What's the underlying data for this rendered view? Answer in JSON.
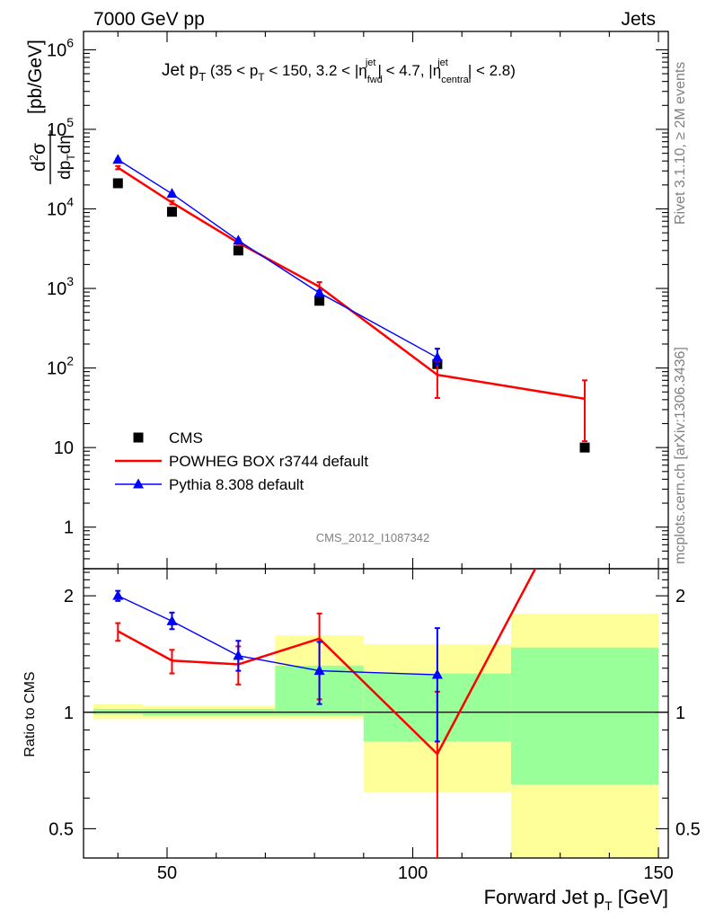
{
  "header": {
    "left": "7000 GeV pp",
    "right": "Jets"
  },
  "side_labels": {
    "rivet": "Rivet 3.1.10, ≥ 2M events",
    "mcplots": "mcplots.cern.ch [arXiv:1306.3436]"
  },
  "analysis_id": "CMS_2012_I1087342",
  "chart_data": [
    {
      "type": "line",
      "title": "Jet p_T (35 < p_T < 150, 3.2 < |η_fwd^jet| < 4.7, |η_central^jet| < 2.8)",
      "xlabel": "Forward Jet p_T [GeV]",
      "ylabel": "d²σ/dp_T dη [pb/GeV]",
      "yscale": "log",
      "xlim": [
        33,
        152
      ],
      "ylim": [
        0.3,
        1700000
      ],
      "ytick_labels": [
        "1",
        "10",
        "10^2",
        "10^3",
        "10^4",
        "10^5",
        "10^6"
      ],
      "legend_position": "bottom-left",
      "series": [
        {
          "name": "CMS",
          "color": "#000000",
          "marker": "square",
          "x": [
            40,
            51,
            64.5,
            81,
            105,
            135
          ],
          "y": [
            21000,
            9200,
            3000,
            700,
            112,
            10
          ]
        },
        {
          "name": "POWHEG BOX r3744 default",
          "color": "#ff0000",
          "marker": "line",
          "x": [
            40,
            51,
            64.5,
            81,
            105,
            135
          ],
          "y": [
            33000,
            12000,
            3750,
            1050,
            82,
            41
          ],
          "yerr_low": [
            31500,
            11400,
            3600,
            930,
            42,
            12
          ],
          "yerr_high": [
            34500,
            12600,
            3900,
            1200,
            120,
            70
          ]
        },
        {
          "name": "Pythia 8.308 default",
          "color": "#0000ff",
          "marker": "triangle",
          "x": [
            40,
            51,
            64.5,
            81,
            105
          ],
          "y": [
            41500,
            15500,
            4000,
            880,
            135
          ],
          "yerr_low": [
            40500,
            15100,
            3850,
            820,
            110
          ],
          "yerr_high": [
            42500,
            15900,
            4150,
            940,
            175
          ]
        }
      ]
    },
    {
      "type": "line",
      "ylabel": "Ratio to CMS",
      "xlabel": "Forward Jet p_T [GeV]",
      "yscale": "log",
      "xlim": [
        33,
        152
      ],
      "ylim": [
        0.42,
        2.35
      ],
      "xtick_labels": [
        "50",
        "100",
        "150"
      ],
      "ytick_labels": [
        "0.5",
        "1",
        "2"
      ],
      "bands": [
        {
          "x0": 35,
          "x1": 45,
          "yellow": [
            0.96,
            1.05
          ],
          "green": [
            0.99,
            1.02
          ]
        },
        {
          "x0": 45,
          "x1": 72,
          "yellow": [
            0.96,
            1.04
          ],
          "green": [
            0.98,
            1.02
          ]
        },
        {
          "x0": 72,
          "x1": 90,
          "yellow": [
            0.96,
            1.58
          ],
          "green": [
            0.98,
            1.32
          ]
        },
        {
          "x0": 90,
          "x1": 120,
          "yellow": [
            0.62,
            1.5
          ],
          "green": [
            0.84,
            1.26
          ]
        },
        {
          "x0": 120,
          "x1": 150,
          "yellow": [
            0.4,
            1.8
          ],
          "green": [
            0.65,
            1.47
          ]
        }
      ],
      "series": [
        {
          "name": "POWHEG BOX r3744 default",
          "color": "#ff0000",
          "x": [
            40,
            51,
            64.5,
            81,
            105,
            135
          ],
          "y": [
            1.62,
            1.36,
            1.33,
            1.55,
            0.78,
            4.1
          ],
          "yerr_low": [
            1.53,
            1.26,
            1.18,
            1.08,
            0.4,
            null
          ],
          "yerr_high": [
            1.7,
            1.45,
            1.48,
            1.8,
            1.13,
            null
          ]
        },
        {
          "name": "Pythia 8.308 default",
          "color": "#0000ff",
          "x": [
            40,
            51,
            64.5,
            81,
            105
          ],
          "y": [
            2.0,
            1.72,
            1.4,
            1.28,
            1.25
          ],
          "yerr_low": [
            1.94,
            1.64,
            1.28,
            1.05,
            0.84
          ],
          "yerr_high": [
            2.06,
            1.81,
            1.53,
            1.52,
            1.65
          ]
        }
      ]
    }
  ]
}
